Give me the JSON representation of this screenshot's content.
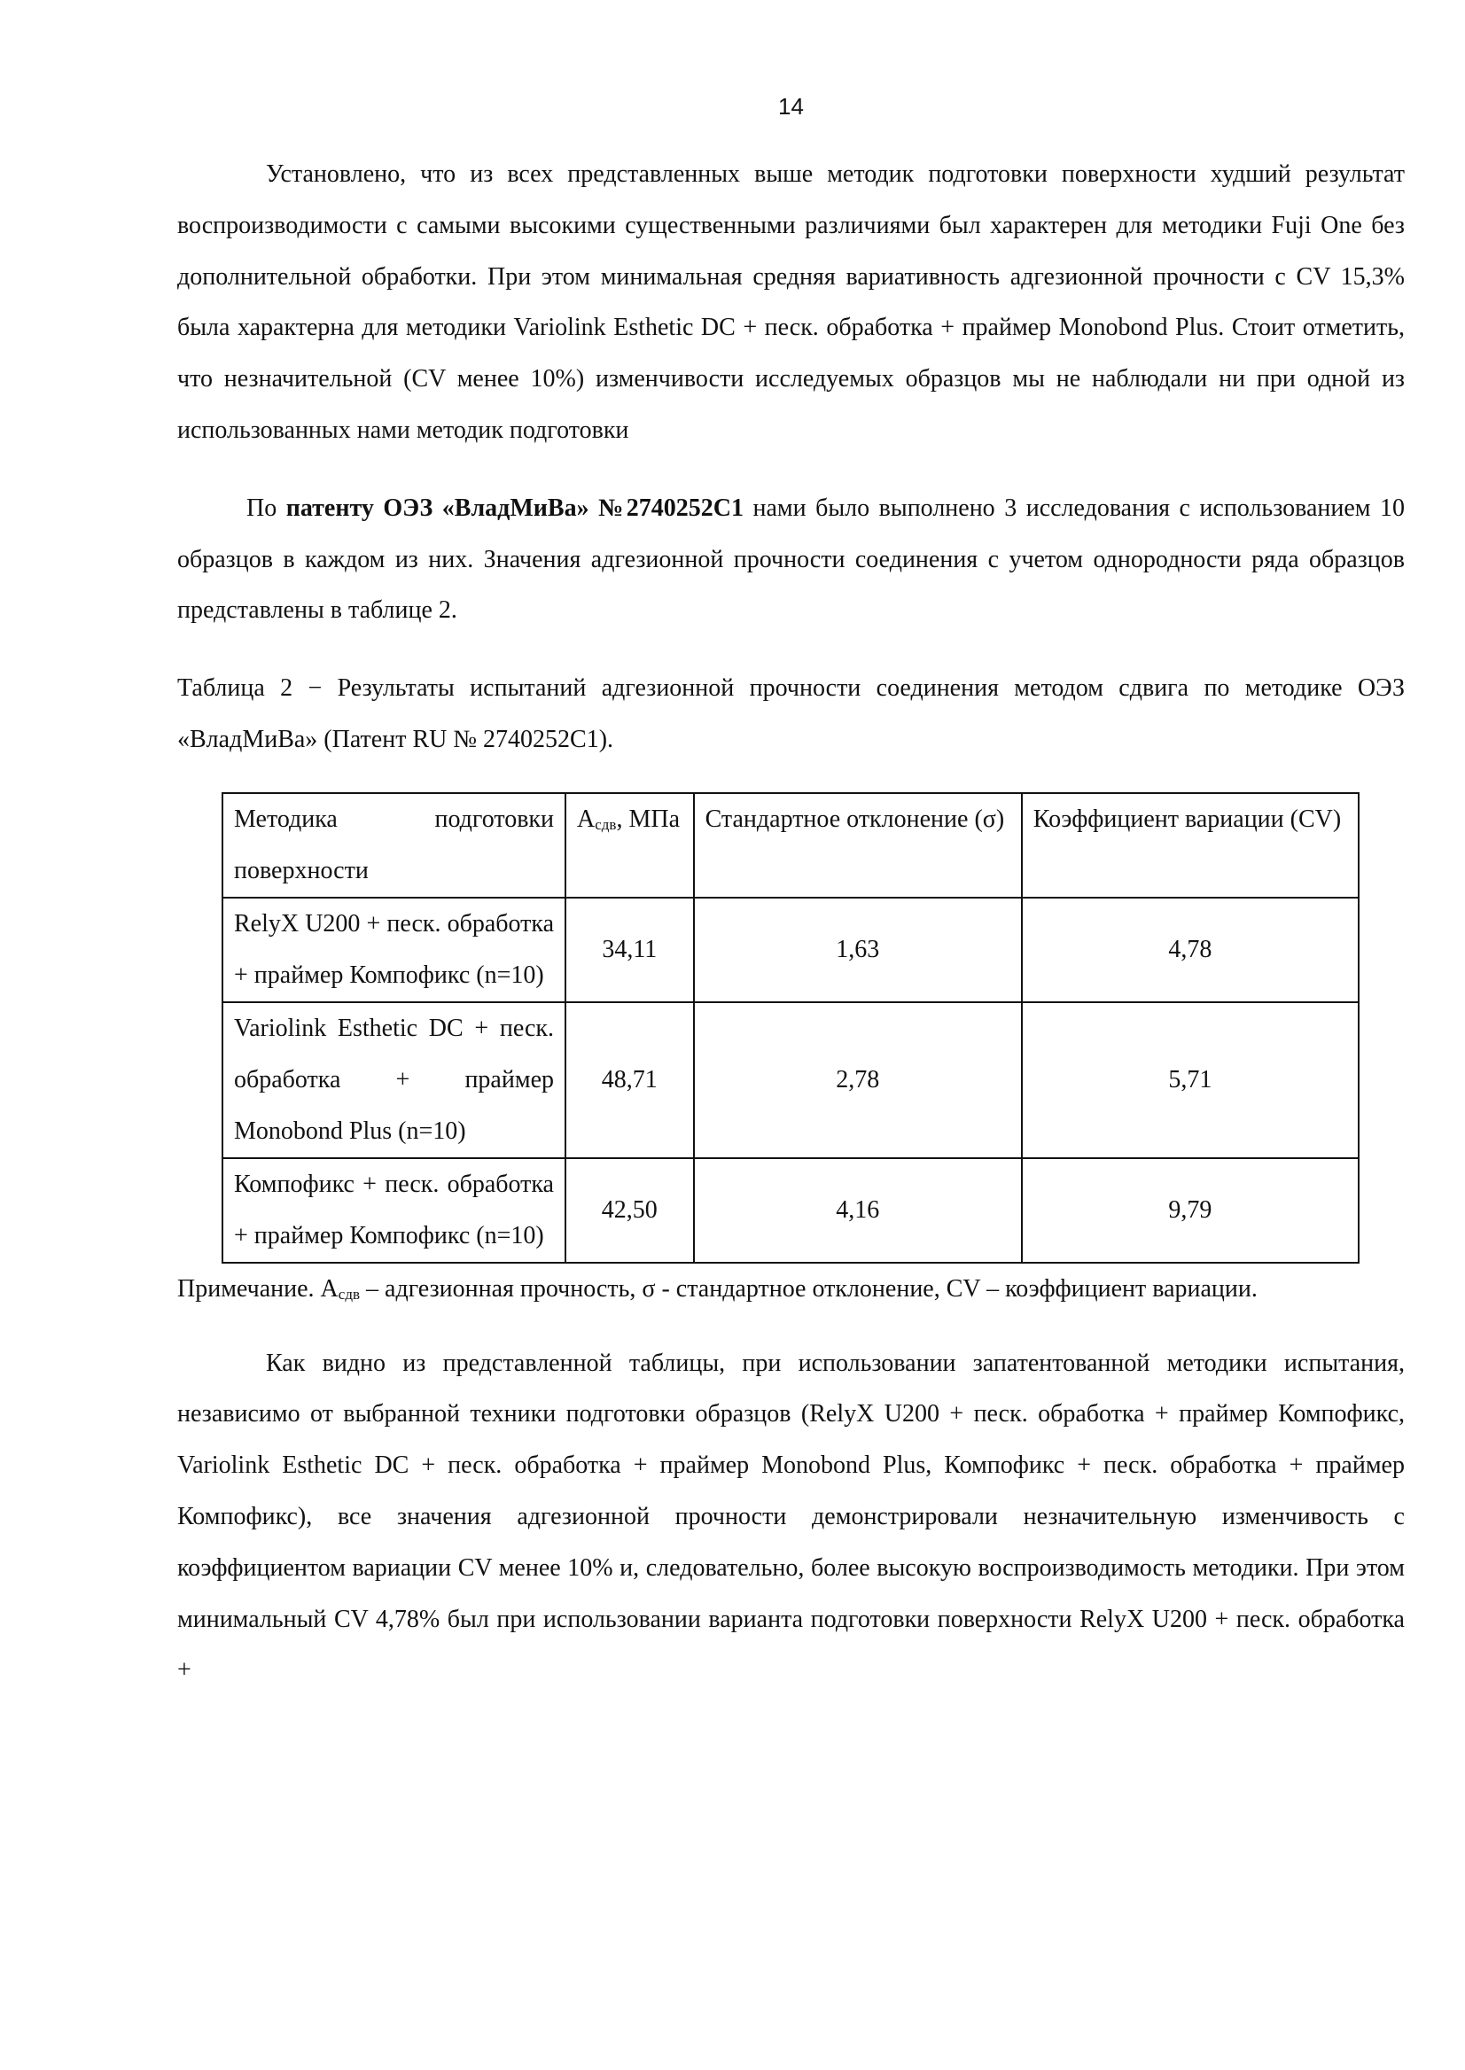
{
  "page_number": "14",
  "paragraph1": "Установлено, что из всех представленных выше методик подготовки поверхности худший результат воспроизводимости с самыми высокими существенными различиями был характерен для методики Fuji One без дополнительной обработки. При этом минимальная средняя вариативность адгезионной прочности с CV 15,3% была характерна для методики Variolink Esthetic DC + песк. обработка + праймер Monobond Plus. Стоит отметить, что незначительной (CV менее 10%) изменчивости исследуемых образцов мы не наблюдали ни при одной из использованных нами методик подготовки",
  "paragraph2": {
    "before": "По ",
    "bold": "патенту ОЭЗ «ВладМиВа» №2740252С1",
    "after": " нами было выполнено 3 исследования с использованием 10 образцов в каждом из них. Значения адгезионной прочности соединения с учетом однородности ряда образцов представлены в таблице 2."
  },
  "table_caption": "Таблица 2 − Результаты испытаний адгезионной прочности соединения методом сдвига по методике ОЭЗ «ВладМиВа» (Патент RU № 2740252С1).",
  "table": {
    "headers": {
      "method": "Методика подготовки поверхности",
      "a_main": "А",
      "a_sub": "сдв",
      "a_unit": ", МПа",
      "sd": "Стандартное отклонение (σ)",
      "cv": "Коэффициент вариации (CV)"
    },
    "rows": [
      {
        "method": "RelyX U200 + песк. обработка + праймер Компофикс (n=10)",
        "a": "34,11",
        "sd": "1,63",
        "cv": "4,78"
      },
      {
        "method": "Variolink Esthetic DC + песк. обработка + праймер Monobond Plus (n=10)",
        "a": "48,71",
        "sd": "2,78",
        "cv": "5,71"
      },
      {
        "method": "Компофикс + песк. обработка + праймер Компофикс (n=10)",
        "a": "42,50",
        "sd": "4,16",
        "cv": "9,79"
      }
    ]
  },
  "note": {
    "prefix": "Примечание. А",
    "sub": "сдв",
    "rest": " – адгезионная прочность, σ - стандартное отклонение, CV – коэффициент вариации."
  },
  "paragraph3": "Как видно из представленной таблицы, при использовании запатентованной методики испытания, независимо от выбранной техники подготовки образцов (RelyX U200 + песк. обработка + праймер Компофикс, Variolink Esthetic DC + песк. обработка + праймер Monobond Plus, Компофикс + песк. обработка + праймер Компофикс), все значения адгезионной прочности демонстрировали незначительную изменчивость с коэффициентом вариации CV менее 10% и, следовательно, более высокую воспроизводимость методики. При этом минимальный CV 4,78% был при использовании варианта подготовки поверхности RelyX U200 + песк. обработка +"
}
